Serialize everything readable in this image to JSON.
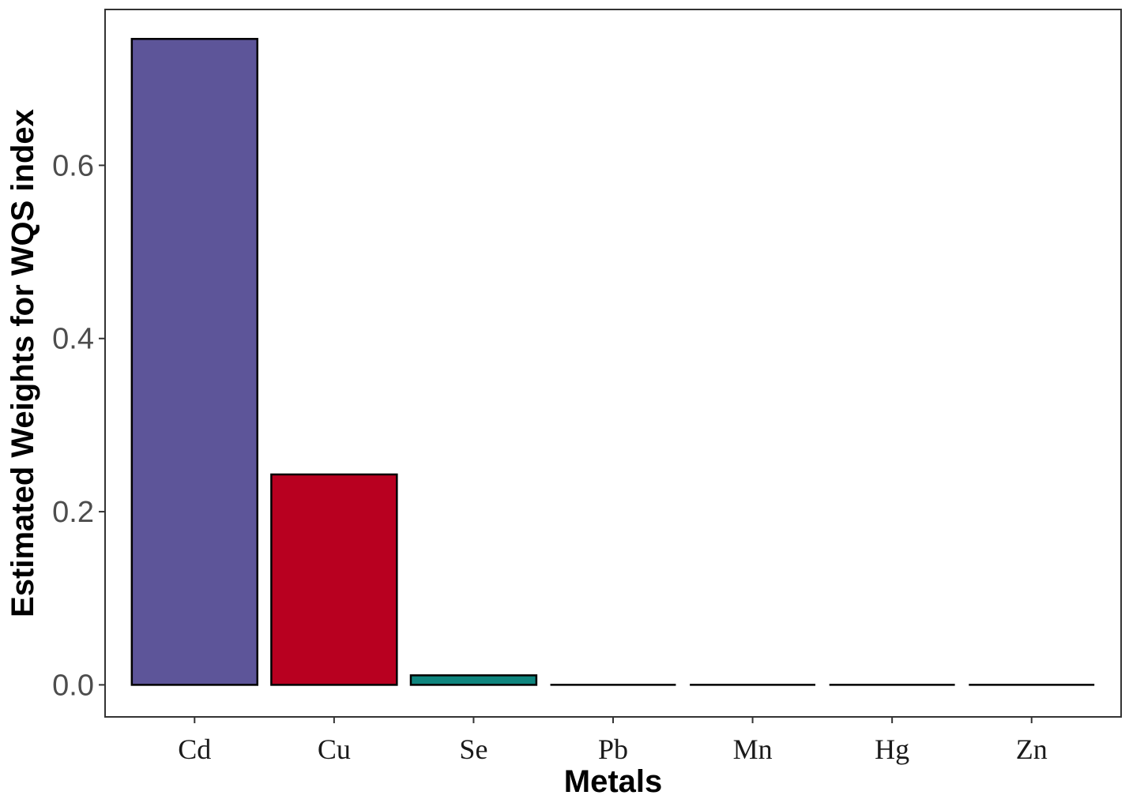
{
  "chart_data": {
    "type": "bar",
    "title": "",
    "xlabel": "Metals",
    "ylabel": "Estimated Weights for WQS index",
    "categories": [
      "Cd",
      "Cu",
      "Se",
      "Pb",
      "Mn",
      "Hg",
      "Zn"
    ],
    "values": [
      0.746,
      0.243,
      0.011,
      0.0,
      0.0,
      0.0,
      0.0
    ],
    "colors": [
      "#5d5599",
      "#b80020",
      "#0f857e",
      "#000000",
      "#000000",
      "#000000",
      "#000000"
    ],
    "ylim": [
      -0.037,
      0.78
    ],
    "yticks": [
      0.0,
      0.2,
      0.4,
      0.6
    ],
    "ytick_labels": [
      "0.0",
      "0.2",
      "0.4",
      "0.6"
    ],
    "grid": false,
    "legend": "none"
  }
}
